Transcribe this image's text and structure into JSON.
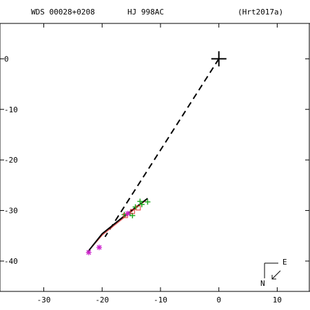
{
  "header": {
    "left": "WDS 00028+0208",
    "center": "HJ  998AC",
    "right": "(Hrt2017a)"
  },
  "compass": {
    "east_label": "E",
    "north_label": "N"
  },
  "chart_data": {
    "type": "scatter",
    "title": "",
    "xlabel": "",
    "ylabel": "",
    "xlim": [
      -37.5,
      15.5
    ],
    "ylim": [
      -46,
      7
    ],
    "x_ticks": [
      -30,
      -20,
      -10,
      0,
      10
    ],
    "y_ticks": [
      0,
      -10,
      -20,
      -30,
      -40
    ],
    "primary": {
      "x": 0,
      "y": 0,
      "marker": "large-cross"
    },
    "measurements": {
      "green_plus": [
        [
          -12.2,
          -28.3
        ],
        [
          -13.5,
          -28.2
        ],
        [
          -14.3,
          -29.3
        ],
        [
          -15.2,
          -30.6
        ],
        [
          -14.8,
          -31.0
        ],
        [
          -16.2,
          -30.8
        ],
        [
          -13.2,
          -28.8
        ]
      ],
      "magenta_star": [
        [
          -22.3,
          -38.3
        ],
        [
          -20.5,
          -37.3
        ],
        [
          -15.6,
          -30.6
        ]
      ],
      "red_square": [
        [
          -16.0,
          -31.0
        ],
        [
          -14.8,
          -30.2
        ],
        [
          -13.8,
          -29.5
        ]
      ]
    },
    "orbit_arc": [
      [
        -12.2,
        -27.6
      ],
      [
        -16.0,
        -30.9
      ],
      [
        -20.0,
        -34.6
      ],
      [
        -22.4,
        -38.1
      ]
    ],
    "model_arc": [
      [
        -12.4,
        -27.9
      ],
      [
        -16.0,
        -31.2
      ],
      [
        -20.0,
        -34.9
      ],
      [
        -22.6,
        -38.4
      ]
    ],
    "node_line": [
      [
        0,
        0
      ],
      [
        -19.5,
        -35.2
      ]
    ],
    "colors": {
      "axes": "#000000",
      "green": "#22aa22",
      "magenta": "#cc22cc",
      "red": "#dd3333",
      "orbit": "#000000"
    }
  }
}
